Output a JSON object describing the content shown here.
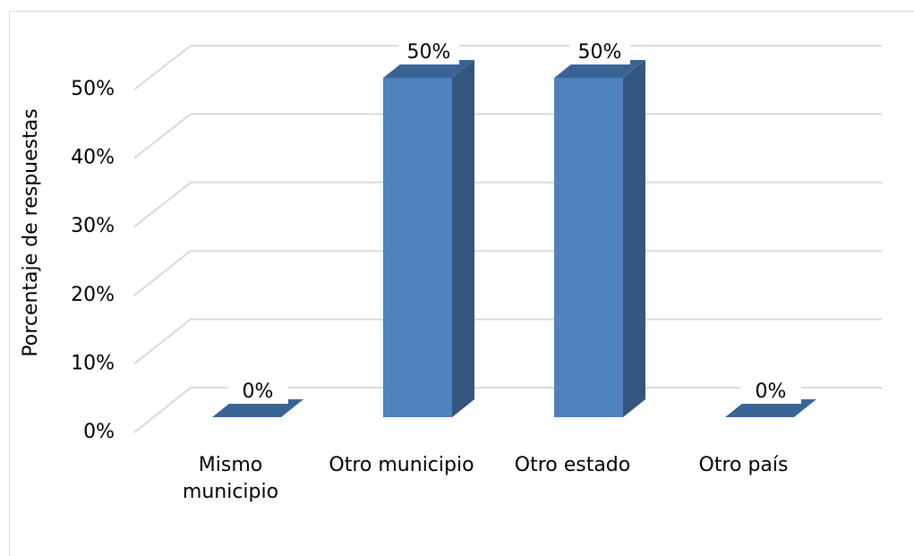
{
  "chart_data": {
    "type": "bar3d",
    "y_axis_label": "Porcentaje de respuestas",
    "categories": [
      "Mismo municipio",
      "Otro municipio",
      "Otro estado",
      "Otro país"
    ],
    "values": [
      0,
      50,
      50,
      0
    ],
    "value_labels": [
      "0%",
      "50%",
      "50%",
      "0%"
    ],
    "color": "#4f81bd",
    "ylim": [
      0,
      50
    ],
    "yticks": [
      {
        "value": 0,
        "label": "0%"
      },
      {
        "value": 10,
        "label": "10%"
      },
      {
        "value": 20,
        "label": "20%"
      },
      {
        "value": 30,
        "label": "30%"
      },
      {
        "value": 40,
        "label": "40%"
      },
      {
        "value": 50,
        "label": "50%"
      }
    ],
    "grid": true
  }
}
